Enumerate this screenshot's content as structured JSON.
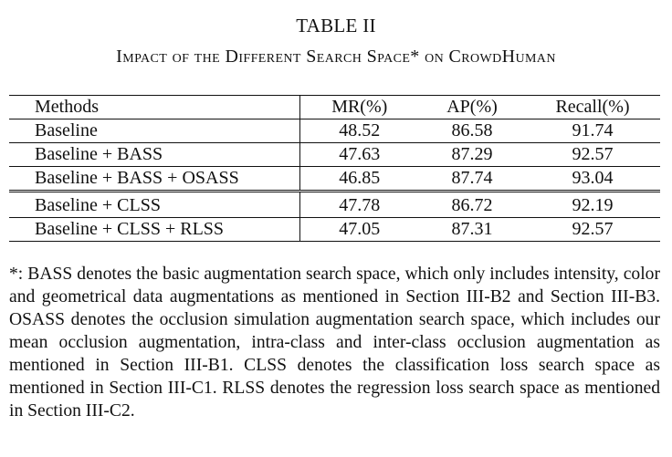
{
  "table_label": "TABLE II",
  "caption": "Impact of the Different Search Space* on CrowdHuman",
  "columns": {
    "methods": "Methods",
    "mr": "MR(%)",
    "ap": "AP(%)",
    "recall": "Recall(%)"
  },
  "rows": [
    {
      "method": "Baseline",
      "mr": "48.52",
      "ap": "86.58",
      "recall": "91.74"
    },
    {
      "method": "Baseline + BASS",
      "mr": "47.63",
      "ap": "87.29",
      "recall": "92.57"
    },
    {
      "method": "Baseline + BASS + OSASS",
      "mr": "46.85",
      "ap": "87.74",
      "recall": "93.04"
    },
    {
      "method": "Baseline + CLSS",
      "mr": "47.78",
      "ap": "86.72",
      "recall": "92.19"
    },
    {
      "method": "Baseline + CLSS + RLSS",
      "mr": "47.05",
      "ap": "87.31",
      "recall": "92.57"
    }
  ],
  "footnote": "*: BASS denotes the basic augmentation search space, which only includes intensity, color and geometrical data augmentations as mentioned in Sec­tion III-B2 and Section III-B3. OSASS denotes the occlusion simulation augmentation search space, which includes our mean occlusion augmen­tation, intra-class and inter-class occlusion augmentation as mentioned in Section III-B1. CLSS denotes the classification loss search space as mentioned in Section III-C1. RLSS denotes the regression loss search space as mentioned in Section III-C2."
}
